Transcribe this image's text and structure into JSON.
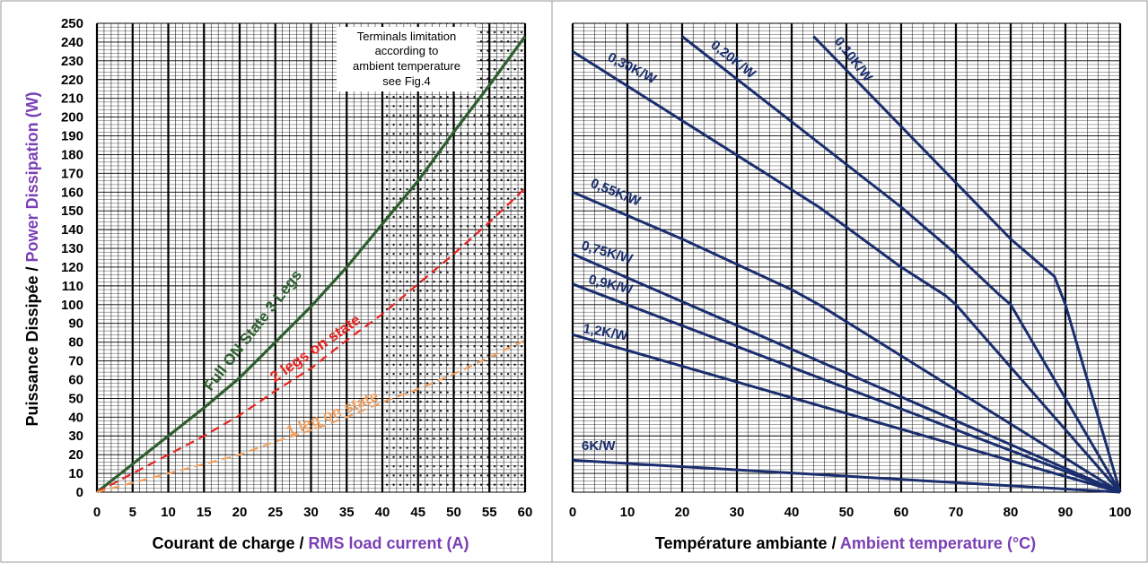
{
  "chart_data": [
    {
      "type": "line",
      "xlabel_fr": "Courant de charge / ",
      "xlabel_en": "RMS load current (A)",
      "ylabel_fr": "Puissance Dissipée  / ",
      "ylabel_en": "Power Dissipation (W)",
      "xlim": [
        0,
        60
      ],
      "ylim": [
        0,
        250
      ],
      "x_ticks": [
        0,
        5,
        10,
        15,
        20,
        25,
        30,
        35,
        40,
        45,
        50,
        55,
        60
      ],
      "y_ticks": [
        0,
        10,
        20,
        30,
        40,
        50,
        60,
        70,
        80,
        90,
        100,
        110,
        120,
        130,
        140,
        150,
        160,
        170,
        180,
        190,
        200,
        210,
        220,
        230,
        240,
        250
      ],
      "grid": true,
      "shaded_region": {
        "x_from": 40,
        "x_to": 60,
        "pattern": "dots"
      },
      "annotation_lines": [
        "Terminals limitation",
        "according to",
        "ambient temperature",
        "see Fig.4"
      ],
      "series": [
        {
          "name": "Full ON State 3 Legs",
          "color": "#2e5e2e",
          "style": "solid",
          "x": [
            0,
            5,
            10,
            15,
            20,
            25,
            30,
            35,
            40,
            45,
            50,
            55,
            60
          ],
          "y": [
            0,
            15,
            30,
            45,
            61,
            80,
            99,
            120,
            143,
            166,
            192,
            217,
            243
          ]
        },
        {
          "name": "2 legs on state",
          "color": "#e8231e",
          "style": "dashed",
          "x": [
            0,
            5,
            10,
            15,
            20,
            25,
            30,
            35,
            40,
            45,
            50,
            55,
            60
          ],
          "y": [
            0,
            10,
            20,
            30,
            41,
            54,
            66,
            81,
            95,
            111,
            127,
            144,
            162
          ]
        },
        {
          "name": "1 leg on state",
          "color": "#f0a060",
          "style": "dashed",
          "x": [
            0,
            5,
            10,
            15,
            20,
            25,
            30,
            35,
            40,
            45,
            50,
            55,
            60
          ],
          "y": [
            0,
            5,
            10,
            15,
            20,
            27,
            33,
            40,
            48,
            55,
            63,
            72,
            81
          ]
        }
      ]
    },
    {
      "type": "line",
      "xlabel_fr": "Température ambiante / ",
      "xlabel_en": "Ambient temperature (°C)",
      "xlim": [
        0,
        100
      ],
      "ylim": [
        0,
        250
      ],
      "x_ticks": [
        0,
        10,
        20,
        30,
        40,
        50,
        60,
        70,
        80,
        90,
        100
      ],
      "grid": true,
      "series_color": "#1a2e6e",
      "series": [
        {
          "name": "0,10K/W",
          "x": [
            44,
            70,
            80,
            88,
            90,
            100
          ],
          "y": [
            243,
            165,
            135,
            115,
            100,
            0
          ]
        },
        {
          "name": "0,20K/W",
          "x": [
            20,
            60,
            70,
            78,
            80,
            100
          ],
          "y": [
            243,
            152,
            127,
            105,
            100,
            0
          ]
        },
        {
          "name": "0,30K/W",
          "x": [
            0,
            45,
            60,
            68,
            70,
            100
          ],
          "y": [
            235,
            152,
            120,
            105,
            100,
            0
          ]
        },
        {
          "name": "0,55K/W",
          "x": [
            0,
            20,
            40,
            45,
            100
          ],
          "y": [
            160,
            135,
            108,
            100,
            0
          ]
        },
        {
          "name": "0,75K/W",
          "x": [
            0,
            100
          ],
          "y": [
            127,
            0
          ]
        },
        {
          "name": "0,9K/W",
          "x": [
            0,
            100
          ],
          "y": [
            111,
            0
          ]
        },
        {
          "name": "1,2K/W",
          "x": [
            0,
            100
          ],
          "y": [
            84,
            0
          ]
        },
        {
          "name": "6K/W",
          "x": [
            0,
            100
          ],
          "y": [
            17,
            0
          ]
        }
      ]
    }
  ]
}
